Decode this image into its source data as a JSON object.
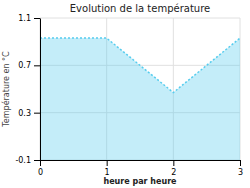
{
  "chart_data": {
    "type": "area",
    "title": "Evolution de la température",
    "x_label": "heure par heure",
    "y_label": "Température en °C",
    "x": [
      0,
      1,
      2,
      3
    ],
    "values": [
      0.93,
      0.93,
      0.47,
      0.93
    ],
    "color": "#55ccee",
    "line_style": "dotted",
    "xlim": [
      0,
      3
    ],
    "ylim": [
      -0.1,
      1.1
    ],
    "xticks": [
      0,
      1,
      2,
      3
    ],
    "yticks": [
      -0.1,
      0.3,
      0.7,
      1.1
    ],
    "grid": true
  }
}
